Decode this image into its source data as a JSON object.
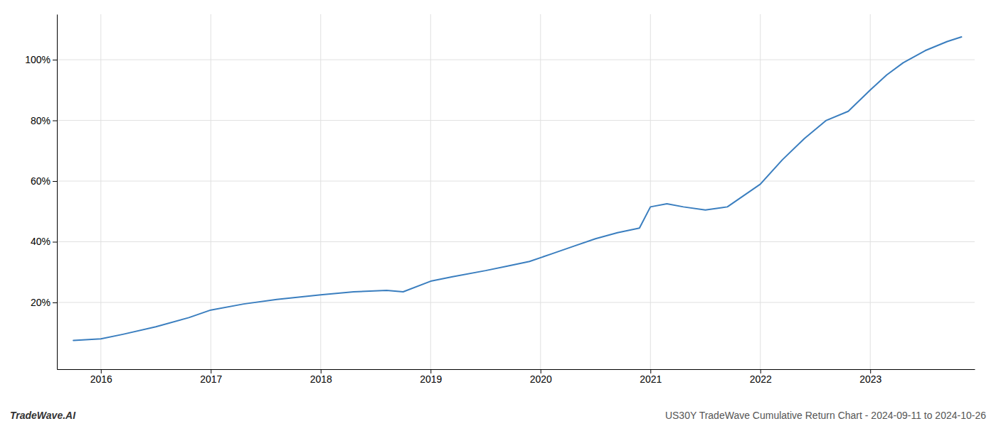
{
  "chart_data": {
    "type": "line",
    "x": [
      2015.75,
      2016.0,
      2016.2,
      2016.5,
      2016.8,
      2017.0,
      2017.3,
      2017.6,
      2018.0,
      2018.3,
      2018.6,
      2018.75,
      2019.0,
      2019.2,
      2019.5,
      2019.7,
      2019.9,
      2020.1,
      2020.3,
      2020.5,
      2020.7,
      2020.9,
      2021.0,
      2021.15,
      2021.3,
      2021.5,
      2021.7,
      2022.0,
      2022.2,
      2022.4,
      2022.6,
      2022.8,
      2023.0,
      2023.15,
      2023.3,
      2023.5,
      2023.7,
      2023.83
    ],
    "values": [
      7.5,
      8.0,
      9.5,
      12.0,
      15.0,
      17.5,
      19.5,
      21.0,
      22.5,
      23.5,
      24.0,
      23.5,
      27.0,
      28.5,
      30.5,
      32.0,
      33.5,
      36.0,
      38.5,
      41.0,
      43.0,
      44.5,
      51.5,
      52.5,
      51.5,
      50.5,
      51.5,
      59.0,
      67.0,
      74.0,
      80.0,
      83.0,
      90.0,
      95.0,
      99.0,
      103.0,
      106.0,
      107.5
    ],
    "color": "#3a7ebf",
    "xlim": [
      2015.6,
      2023.95
    ],
    "xticks": [
      2016,
      2017,
      2018,
      2019,
      2020,
      2021,
      2022,
      2023
    ],
    "ylim": [
      -2,
      115
    ],
    "yticks": [
      {
        "value": 20,
        "label": "20%"
      },
      {
        "value": 40,
        "label": "40%"
      },
      {
        "value": 60,
        "label": "60%"
      },
      {
        "value": 80,
        "label": "80%"
      },
      {
        "value": 100,
        "label": "100%"
      }
    ],
    "grid": true,
    "annotations": [
      "TradeWave.AI",
      "US30Y TradeWave Cumulative Return Chart - 2024-09-11 to 2024-10-26"
    ]
  }
}
